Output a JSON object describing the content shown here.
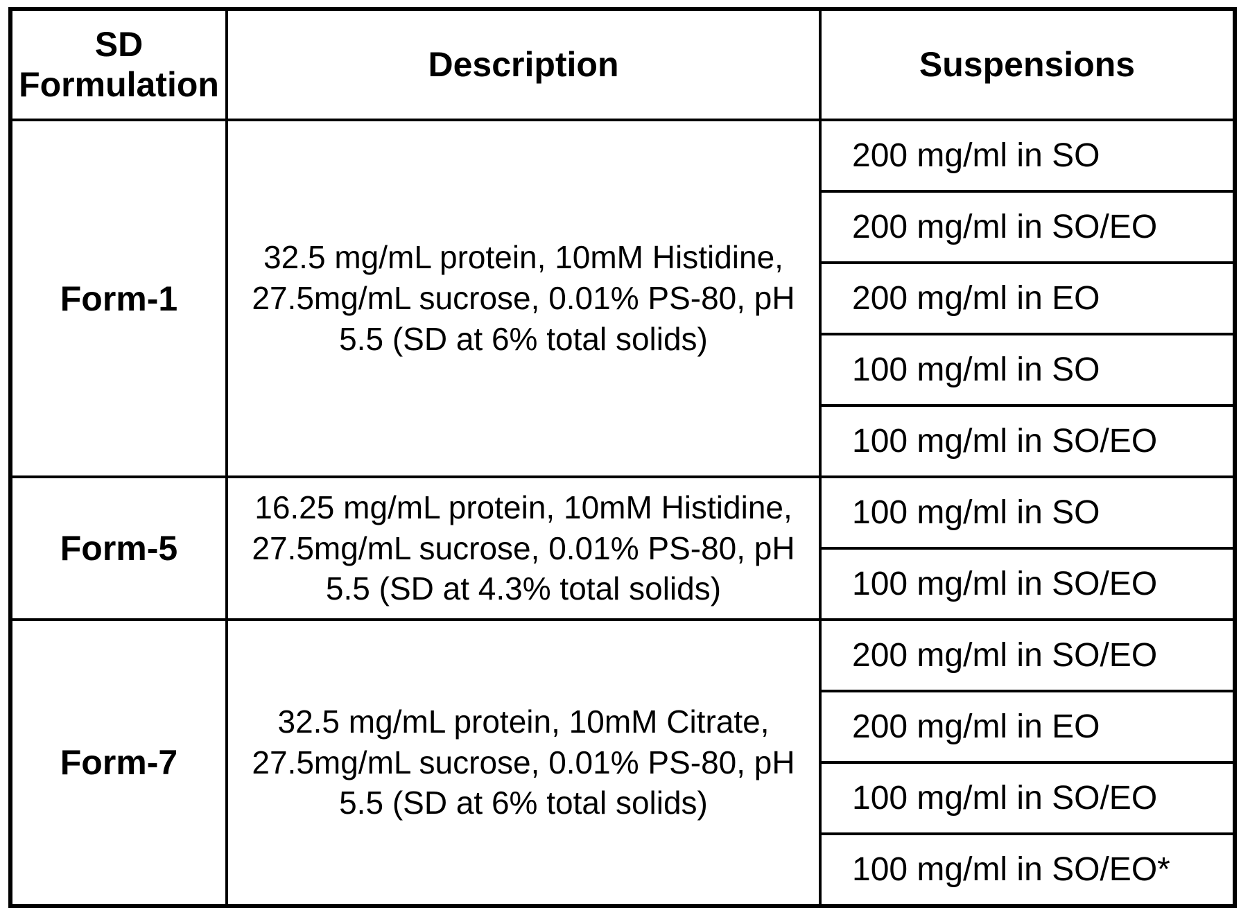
{
  "table": {
    "headers": [
      "SD Formulation",
      "Description",
      "Suspensions"
    ],
    "groups": [
      {
        "formulation": "Form-1",
        "description_lines": [
          "32.5 mg/mL protein, 10mM Histidine,",
          "27.5mg/mL sucrose, 0.01% PS-80, pH",
          "5.5 (SD at 6% total solids)"
        ],
        "suspensions": [
          "200 mg/ml in SO",
          "200 mg/ml in SO/EO",
          "200 mg/ml in EO",
          "100 mg/ml in SO",
          "100 mg/ml in SO/EO"
        ]
      },
      {
        "formulation": "Form-5",
        "description_lines": [
          "16.25 mg/mL protein, 10mM Histidine,",
          "27.5mg/mL sucrose, 0.01% PS-80, pH",
          "5.5 (SD at 4.3% total solids)"
        ],
        "suspensions": [
          "100 mg/ml in SO",
          "100 mg/ml in SO/EO"
        ]
      },
      {
        "formulation": "Form-7",
        "description_lines": [
          "32.5 mg/mL protein, 10mM Citrate,",
          "27.5mg/mL sucrose, 0.01% PS-80, pH",
          "5.5 (SD at 6% total solids)"
        ],
        "suspensions": [
          "200 mg/ml in SO/EO",
          "200 mg/ml in EO",
          "100 mg/ml in SO/EO",
          "100 mg/ml in SO/EO*"
        ]
      }
    ],
    "colors": {
      "border": "#000000",
      "text": "#000000",
      "background": "#ffffff"
    }
  }
}
